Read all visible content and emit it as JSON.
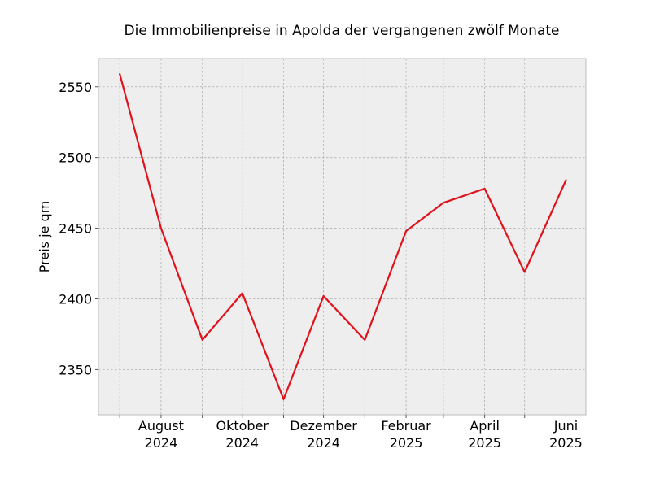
{
  "chart_data": {
    "type": "line",
    "title": "Die Immobilienpreise in Apolda der vergangenen zwölf Monate",
    "xlabel": "",
    "ylabel": "Preis je qm",
    "x": [
      "2024-07",
      "2024-08",
      "2024-09",
      "2024-10",
      "2024-11",
      "2024-12",
      "2025-01",
      "2025-02",
      "2025-03",
      "2025-04",
      "2025-05",
      "2025-06"
    ],
    "series": [
      {
        "values": [
          2559,
          2450,
          2371,
          2404,
          2329,
          2402,
          2371,
          2448,
          2468,
          2478,
          2419,
          2484
        ]
      }
    ],
    "x_tick_labels": [
      {
        "x": "2024-08",
        "line1": "August",
        "line2": "2024"
      },
      {
        "x": "2024-10",
        "line1": "Oktober",
        "line2": "2024"
      },
      {
        "x": "2024-12",
        "line1": "Dezember",
        "line2": "2024"
      },
      {
        "x": "2025-02",
        "line1": "Februar",
        "line2": "2025"
      },
      {
        "x": "2025-04",
        "line1": "April",
        "line2": "2025"
      },
      {
        "x": "2025-06",
        "line1": "Juni",
        "line2": "2025"
      }
    ],
    "y_ticks": [
      2350,
      2400,
      2450,
      2500,
      2550
    ],
    "ylim": [
      2318,
      2570
    ],
    "xlim": [
      "2024-06-15",
      "2025-06-16"
    ],
    "grid": true,
    "line_color": "#e0121c",
    "background_color": "#eeeeee"
  }
}
